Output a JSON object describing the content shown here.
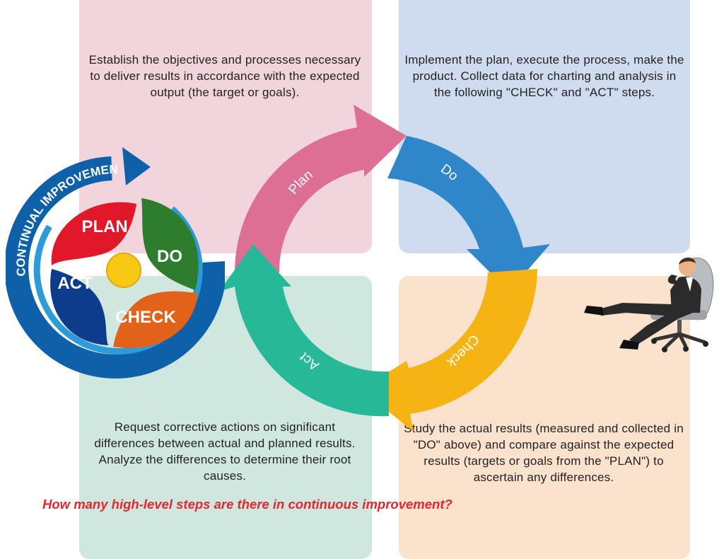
{
  "quadrants": {
    "plan": "Establish the objectives and processes necessary to deliver results in accordance with the expected output (the target or goals).",
    "do": "Implement the plan, execute the process, make the product. Collect data for charting and analysis in the following \"CHECK\" and \"ACT\" steps.",
    "act": "Request corrective actions on significant differences between actual and planned results. Analyze the differences to determine their root causes.",
    "check": "Study the actual results (measured and collected in \"DO\" above) and compare against the expected results (targets or goals from the \"PLAN\") to ascertain any differences."
  },
  "cycle": {
    "plan": "Plan",
    "do": "Do",
    "check": "Check",
    "act": "Act"
  },
  "badge": {
    "arc_label": "CONTINUAL IMPROVEMENT",
    "plan": "PLAN",
    "do": "DO",
    "act": "ACT",
    "check": "CHECK"
  },
  "question": "How many high-level steps are there in continuous improvement?",
  "colors": {
    "plan_quad": "#f2d4dc",
    "do_quad": "#cfdcf0",
    "act_quad": "#d0e7e0",
    "check_quad": "#fbe2cd",
    "plan_arrow": "#de6f94",
    "do_arrow": "#2f87c9",
    "check_arrow": "#f6b414",
    "act_arrow": "#27b897",
    "question": "#e8262c"
  }
}
